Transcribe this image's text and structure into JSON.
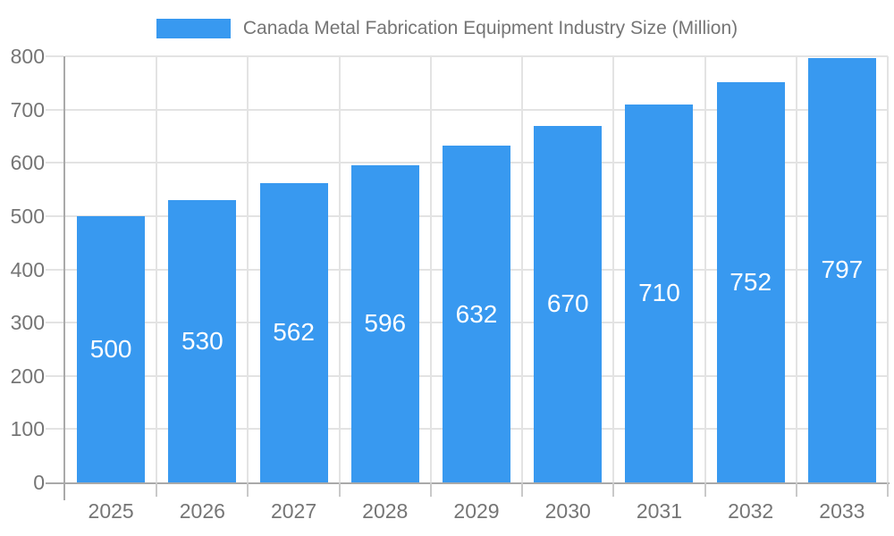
{
  "chart_data": {
    "type": "bar",
    "title": "",
    "legend": "Canada Metal Fabrication Equipment Industry Size (Million)",
    "legend_position": "top",
    "categories": [
      "2025",
      "2026",
      "2027",
      "2028",
      "2029",
      "2030",
      "2031",
      "2032",
      "2033"
    ],
    "values": [
      500,
      530,
      562,
      596,
      632,
      670,
      710,
      752,
      797
    ],
    "xlabel": "",
    "ylabel": "",
    "ylim": [
      0,
      800
    ],
    "ytick_step": 100,
    "grid": true,
    "colors": {
      "bar": "#3899F0",
      "value_label": "#ffffff",
      "axis_line": "#a9a9a9",
      "gridline": "#e3e3e3",
      "tick_label": "#757575",
      "legend_text": "#757575",
      "background": "#ffffff"
    }
  }
}
